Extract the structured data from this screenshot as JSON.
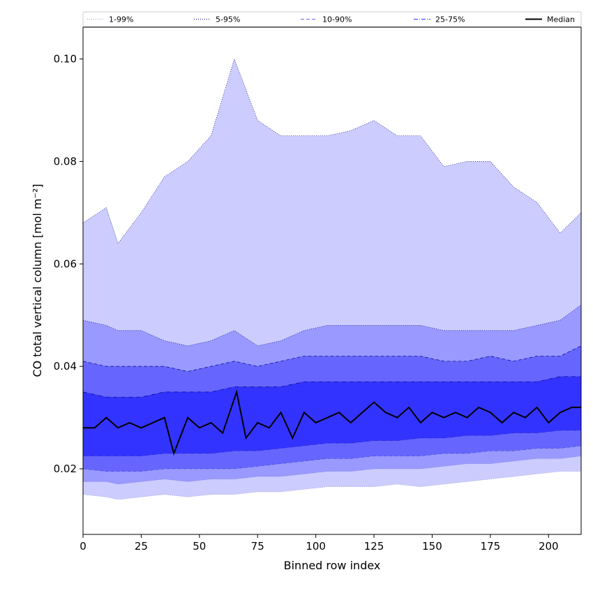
{
  "chart_data": {
    "type": "area",
    "xlabel": "Binned row index",
    "ylabel": "CO total vertical column [mol m⁻²]",
    "xlim": [
      0,
      214
    ],
    "ylim": [
      0.0072,
      0.1062
    ],
    "x_ticks": [
      0,
      25,
      50,
      75,
      100,
      125,
      150,
      175,
      200
    ],
    "y_ticks": [
      0.02,
      0.04,
      0.06,
      0.08,
      0.1
    ],
    "x_tick_labels": [
      "0",
      "25",
      "50",
      "75",
      "100",
      "125",
      "150",
      "175",
      "200"
    ],
    "y_tick_labels": [
      "0.02",
      "0.04",
      "0.06",
      "0.08",
      "0.10"
    ],
    "grid": false,
    "legend_position": "top",
    "colors": {
      "band_1_99": "#ccccff",
      "band_5_95": "#9999ff",
      "band_10_90": "#6666ff",
      "band_25_75": "#3333ff",
      "median": "#000000"
    },
    "bands": [
      {
        "name": "1-99%",
        "x": [
          0,
          10,
          15,
          25,
          35,
          45,
          55,
          65,
          75,
          85,
          95,
          105,
          115,
          125,
          135,
          145,
          155,
          165,
          175,
          185,
          195,
          205,
          214
        ],
        "lower": [
          0.015,
          0.0145,
          0.014,
          0.0145,
          0.015,
          0.0145,
          0.015,
          0.015,
          0.0155,
          0.0155,
          0.016,
          0.0165,
          0.0165,
          0.0165,
          0.017,
          0.0165,
          0.017,
          0.0175,
          0.018,
          0.0185,
          0.019,
          0.0195,
          0.0195
        ],
        "upper": [
          0.068,
          0.071,
          0.064,
          0.07,
          0.077,
          0.08,
          0.085,
          0.1,
          0.088,
          0.085,
          0.085,
          0.085,
          0.086,
          0.088,
          0.085,
          0.085,
          0.079,
          0.08,
          0.08,
          0.075,
          0.072,
          0.066,
          0.07
        ]
      },
      {
        "name": "5-95%",
        "x": [
          0,
          10,
          15,
          25,
          35,
          45,
          55,
          65,
          75,
          85,
          95,
          105,
          115,
          125,
          135,
          145,
          155,
          165,
          175,
          185,
          195,
          205,
          214
        ],
        "lower": [
          0.0175,
          0.0175,
          0.017,
          0.0175,
          0.018,
          0.0175,
          0.018,
          0.018,
          0.0185,
          0.0185,
          0.019,
          0.0195,
          0.0195,
          0.02,
          0.02,
          0.02,
          0.0205,
          0.021,
          0.021,
          0.0215,
          0.022,
          0.022,
          0.0225
        ],
        "upper": [
          0.049,
          0.048,
          0.047,
          0.047,
          0.045,
          0.044,
          0.045,
          0.047,
          0.044,
          0.045,
          0.047,
          0.048,
          0.048,
          0.048,
          0.048,
          0.048,
          0.047,
          0.047,
          0.047,
          0.047,
          0.048,
          0.049,
          0.052
        ]
      },
      {
        "name": "10-90%",
        "x": [
          0,
          10,
          15,
          25,
          35,
          45,
          55,
          65,
          75,
          85,
          95,
          105,
          115,
          125,
          135,
          145,
          155,
          165,
          175,
          185,
          195,
          205,
          214
        ],
        "lower": [
          0.02,
          0.0195,
          0.0195,
          0.0195,
          0.02,
          0.02,
          0.02,
          0.02,
          0.0205,
          0.021,
          0.0215,
          0.022,
          0.022,
          0.0225,
          0.0225,
          0.0225,
          0.023,
          0.023,
          0.0235,
          0.0235,
          0.024,
          0.024,
          0.0245
        ],
        "upper": [
          0.041,
          0.04,
          0.04,
          0.04,
          0.04,
          0.039,
          0.04,
          0.041,
          0.04,
          0.041,
          0.042,
          0.042,
          0.042,
          0.042,
          0.042,
          0.042,
          0.041,
          0.041,
          0.042,
          0.041,
          0.042,
          0.042,
          0.044
        ]
      },
      {
        "name": "25-75%",
        "x": [
          0,
          10,
          15,
          25,
          35,
          45,
          55,
          65,
          75,
          85,
          95,
          105,
          115,
          125,
          135,
          145,
          155,
          165,
          175,
          185,
          195,
          205,
          214
        ],
        "lower": [
          0.0225,
          0.0225,
          0.0225,
          0.0225,
          0.023,
          0.023,
          0.023,
          0.0235,
          0.0235,
          0.024,
          0.0245,
          0.025,
          0.025,
          0.0255,
          0.0255,
          0.026,
          0.026,
          0.0265,
          0.0265,
          0.027,
          0.027,
          0.0275,
          0.0275
        ],
        "upper": [
          0.035,
          0.034,
          0.034,
          0.034,
          0.035,
          0.035,
          0.035,
          0.036,
          0.036,
          0.036,
          0.037,
          0.037,
          0.037,
          0.037,
          0.037,
          0.037,
          0.037,
          0.037,
          0.037,
          0.037,
          0.037,
          0.038,
          0.038
        ]
      }
    ],
    "median": {
      "name": "Median",
      "x": [
        0,
        5,
        10,
        15,
        20,
        25,
        30,
        35,
        39,
        45,
        50,
        55,
        60,
        66,
        70,
        75,
        80,
        85,
        90,
        95,
        100,
        105,
        110,
        115,
        120,
        125,
        130,
        135,
        140,
        145,
        150,
        155,
        160,
        165,
        170,
        175,
        180,
        185,
        190,
        195,
        200,
        205,
        210,
        214
      ],
      "y": [
        0.028,
        0.028,
        0.03,
        0.028,
        0.029,
        0.028,
        0.029,
        0.03,
        0.023,
        0.03,
        0.028,
        0.029,
        0.027,
        0.035,
        0.026,
        0.029,
        0.028,
        0.031,
        0.026,
        0.031,
        0.029,
        0.03,
        0.031,
        0.029,
        0.031,
        0.033,
        0.031,
        0.03,
        0.032,
        0.029,
        0.031,
        0.03,
        0.031,
        0.03,
        0.032,
        0.031,
        0.029,
        0.031,
        0.03,
        0.032,
        0.029,
        0.031,
        0.032,
        0.032
      ]
    },
    "legend": [
      {
        "label": "1-99%",
        "color": "#ccccff",
        "dash": "dotted"
      },
      {
        "label": "5-95%",
        "color": "#9999ff",
        "dash": "dotted"
      },
      {
        "label": "10-90%",
        "color": "#6666ff",
        "dash": "dashed"
      },
      {
        "label": "25-75%",
        "color": "#3333ff",
        "dash": "dashdot"
      },
      {
        "label": "Median",
        "color": "#000000",
        "dash": "solid"
      }
    ]
  }
}
